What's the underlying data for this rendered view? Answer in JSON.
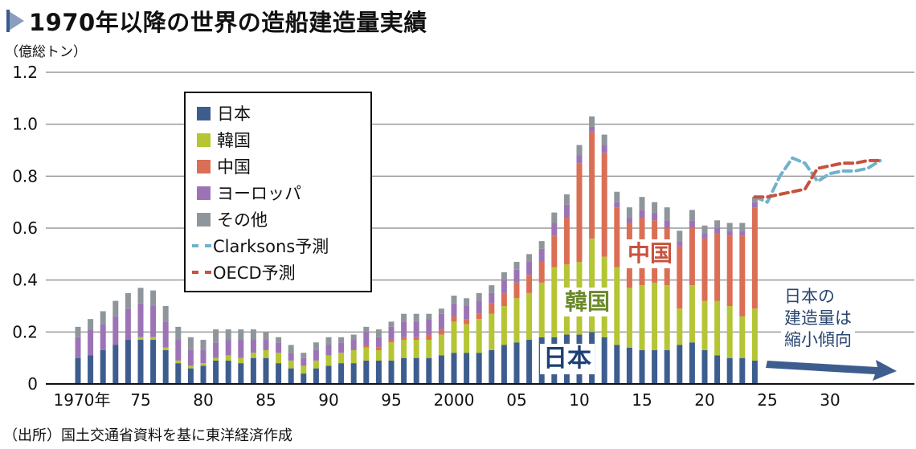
{
  "title": "1970年以降の世界の造船建造量実績",
  "unit_label": "（億総トン）",
  "source_note": "（出所）国土交通省資料を基に東洋経済作成",
  "legend": {
    "items": [
      {
        "label": "日本",
        "color": "#3e5d8f",
        "kind": "box"
      },
      {
        "label": "韓国",
        "color": "#b5c534",
        "kind": "box"
      },
      {
        "label": "中国",
        "color": "#db6f55",
        "kind": "box"
      },
      {
        "label": "ヨーロッパ",
        "color": "#9c74b6",
        "kind": "box"
      },
      {
        "label": "その他",
        "color": "#8f969b",
        "kind": "box"
      },
      {
        "label": "Clarksons予測",
        "color": "#6fb2cb",
        "kind": "dash"
      },
      {
        "label": "OECD予測",
        "color": "#c8523d",
        "kind": "dash"
      }
    ]
  },
  "annotations": {
    "china": "中国",
    "korea": "韓国",
    "japan": "日本",
    "trend_lines": [
      "日本の",
      "建造量は",
      "縮小傾向"
    ]
  },
  "chart_data": {
    "type": "bar",
    "stacked": true,
    "title": "1970年以降の世界の造船建造量実績",
    "ylabel": "億総トン",
    "xlabel": "",
    "ylim": [
      0,
      1.2
    ],
    "xlim": [
      1970,
      2035
    ],
    "yticks": [
      {
        "value": 0,
        "label": "0"
      },
      {
        "value": 0.2,
        "label": "0.2"
      },
      {
        "value": 0.4,
        "label": "0.4"
      },
      {
        "value": 0.6,
        "label": "0.6"
      },
      {
        "value": 0.8,
        "label": "0.8"
      },
      {
        "value": 1.0,
        "label": "1.0"
      },
      {
        "value": 1.2,
        "label": "1.2"
      }
    ],
    "xticks": [
      {
        "value": 1970,
        "label": "1970年"
      },
      {
        "value": 1975,
        "label": "75"
      },
      {
        "value": 1980,
        "label": "80"
      },
      {
        "value": 1985,
        "label": "85"
      },
      {
        "value": 1990,
        "label": "90"
      },
      {
        "value": 1995,
        "label": "95"
      },
      {
        "value": 2000,
        "label": "2000"
      },
      {
        "value": 2005,
        "label": "05"
      },
      {
        "value": 2010,
        "label": "10"
      },
      {
        "value": 2015,
        "label": "15"
      },
      {
        "value": 2020,
        "label": "20"
      },
      {
        "value": 2025,
        "label": "25"
      },
      {
        "value": 2030,
        "label": "30"
      }
    ],
    "grid": true,
    "legend_position": "top-left",
    "years": [
      1970,
      1971,
      1972,
      1973,
      1974,
      1975,
      1976,
      1977,
      1978,
      1979,
      1980,
      1981,
      1982,
      1983,
      1984,
      1985,
      1986,
      1987,
      1988,
      1989,
      1990,
      1991,
      1992,
      1993,
      1994,
      1995,
      1996,
      1997,
      1998,
      1999,
      2000,
      2001,
      2002,
      2003,
      2004,
      2005,
      2006,
      2007,
      2008,
      2009,
      2010,
      2011,
      2012,
      2013,
      2014,
      2015,
      2016,
      2017,
      2018,
      2019,
      2020,
      2021,
      2022,
      2023,
      2024
    ],
    "series": [
      {
        "name": "日本",
        "color": "#3e5d8f",
        "values": [
          0.1,
          0.11,
          0.13,
          0.15,
          0.17,
          0.17,
          0.17,
          0.13,
          0.08,
          0.06,
          0.07,
          0.09,
          0.09,
          0.08,
          0.1,
          0.1,
          0.08,
          0.06,
          0.04,
          0.06,
          0.07,
          0.08,
          0.08,
          0.09,
          0.09,
          0.09,
          0.1,
          0.1,
          0.1,
          0.11,
          0.12,
          0.12,
          0.12,
          0.13,
          0.15,
          0.16,
          0.17,
          0.18,
          0.18,
          0.19,
          0.19,
          0.2,
          0.18,
          0.15,
          0.14,
          0.13,
          0.13,
          0.13,
          0.15,
          0.16,
          0.13,
          0.11,
          0.1,
          0.1,
          0.09
        ]
      },
      {
        "name": "韓国",
        "color": "#b5c534",
        "values": [
          0.0,
          0.0,
          0.0,
          0.0,
          0.0,
          0.01,
          0.01,
          0.01,
          0.01,
          0.01,
          0.01,
          0.01,
          0.02,
          0.02,
          0.02,
          0.03,
          0.04,
          0.03,
          0.03,
          0.03,
          0.04,
          0.04,
          0.05,
          0.05,
          0.04,
          0.07,
          0.07,
          0.07,
          0.07,
          0.08,
          0.12,
          0.11,
          0.13,
          0.14,
          0.15,
          0.17,
          0.18,
          0.21,
          0.27,
          0.27,
          0.28,
          0.36,
          0.31,
          0.3,
          0.23,
          0.25,
          0.26,
          0.25,
          0.14,
          0.22,
          0.19,
          0.21,
          0.2,
          0.16,
          0.2
        ]
      },
      {
        "name": "中国",
        "color": "#db6f55",
        "values": [
          0.0,
          0.0,
          0.0,
          0.0,
          0.0,
          0.0,
          0.0,
          0.0,
          0.0,
          0.0,
          0.0,
          0.0,
          0.0,
          0.0,
          0.0,
          0.0,
          0.0,
          0.0,
          0.0,
          0.0,
          0.0,
          0.0,
          0.0,
          0.01,
          0.01,
          0.01,
          0.01,
          0.01,
          0.02,
          0.02,
          0.02,
          0.02,
          0.02,
          0.04,
          0.05,
          0.06,
          0.07,
          0.08,
          0.12,
          0.18,
          0.38,
          0.41,
          0.4,
          0.23,
          0.25,
          0.26,
          0.24,
          0.22,
          0.24,
          0.22,
          0.24,
          0.26,
          0.27,
          0.31,
          0.39
        ]
      },
      {
        "name": "ヨーロッパ",
        "color": "#9c74b6",
        "values": [
          0.08,
          0.1,
          0.1,
          0.11,
          0.12,
          0.13,
          0.12,
          0.1,
          0.08,
          0.06,
          0.05,
          0.06,
          0.06,
          0.07,
          0.05,
          0.04,
          0.04,
          0.03,
          0.03,
          0.04,
          0.04,
          0.04,
          0.04,
          0.05,
          0.04,
          0.05,
          0.06,
          0.06,
          0.06,
          0.06,
          0.05,
          0.05,
          0.05,
          0.04,
          0.05,
          0.05,
          0.05,
          0.05,
          0.05,
          0.05,
          0.03,
          0.02,
          0.03,
          0.02,
          0.02,
          0.03,
          0.03,
          0.03,
          0.02,
          0.03,
          0.02,
          0.02,
          0.02,
          0.02,
          0.02
        ]
      },
      {
        "name": "その他",
        "color": "#8f969b",
        "values": [
          0.04,
          0.04,
          0.05,
          0.06,
          0.06,
          0.06,
          0.06,
          0.06,
          0.05,
          0.05,
          0.04,
          0.05,
          0.04,
          0.04,
          0.04,
          0.03,
          0.02,
          0.03,
          0.02,
          0.03,
          0.03,
          0.02,
          0.02,
          0.02,
          0.03,
          0.02,
          0.03,
          0.03,
          0.02,
          0.02,
          0.03,
          0.03,
          0.03,
          0.03,
          0.03,
          0.03,
          0.03,
          0.03,
          0.04,
          0.04,
          0.04,
          0.04,
          0.04,
          0.04,
          0.04,
          0.05,
          0.04,
          0.05,
          0.04,
          0.04,
          0.03,
          0.03,
          0.03,
          0.03,
          0.02
        ]
      }
    ],
    "forecast_series": [
      {
        "name": "Clarksons予測",
        "color": "#6fb2cb",
        "x": [
          2024,
          2025,
          2026,
          2027,
          2028,
          2029,
          2030,
          2031,
          2032,
          2033,
          2034
        ],
        "values": [
          0.72,
          0.7,
          0.8,
          0.87,
          0.85,
          0.78,
          0.81,
          0.82,
          0.82,
          0.83,
          0.86
        ]
      },
      {
        "name": "OECD予測",
        "color": "#c8523d",
        "x": [
          2024,
          2025,
          2026,
          2027,
          2028,
          2029,
          2030,
          2031,
          2032,
          2033,
          2034
        ],
        "values": [
          0.72,
          0.72,
          0.73,
          0.74,
          0.75,
          0.83,
          0.84,
          0.85,
          0.85,
          0.86,
          0.86
        ]
      }
    ]
  }
}
